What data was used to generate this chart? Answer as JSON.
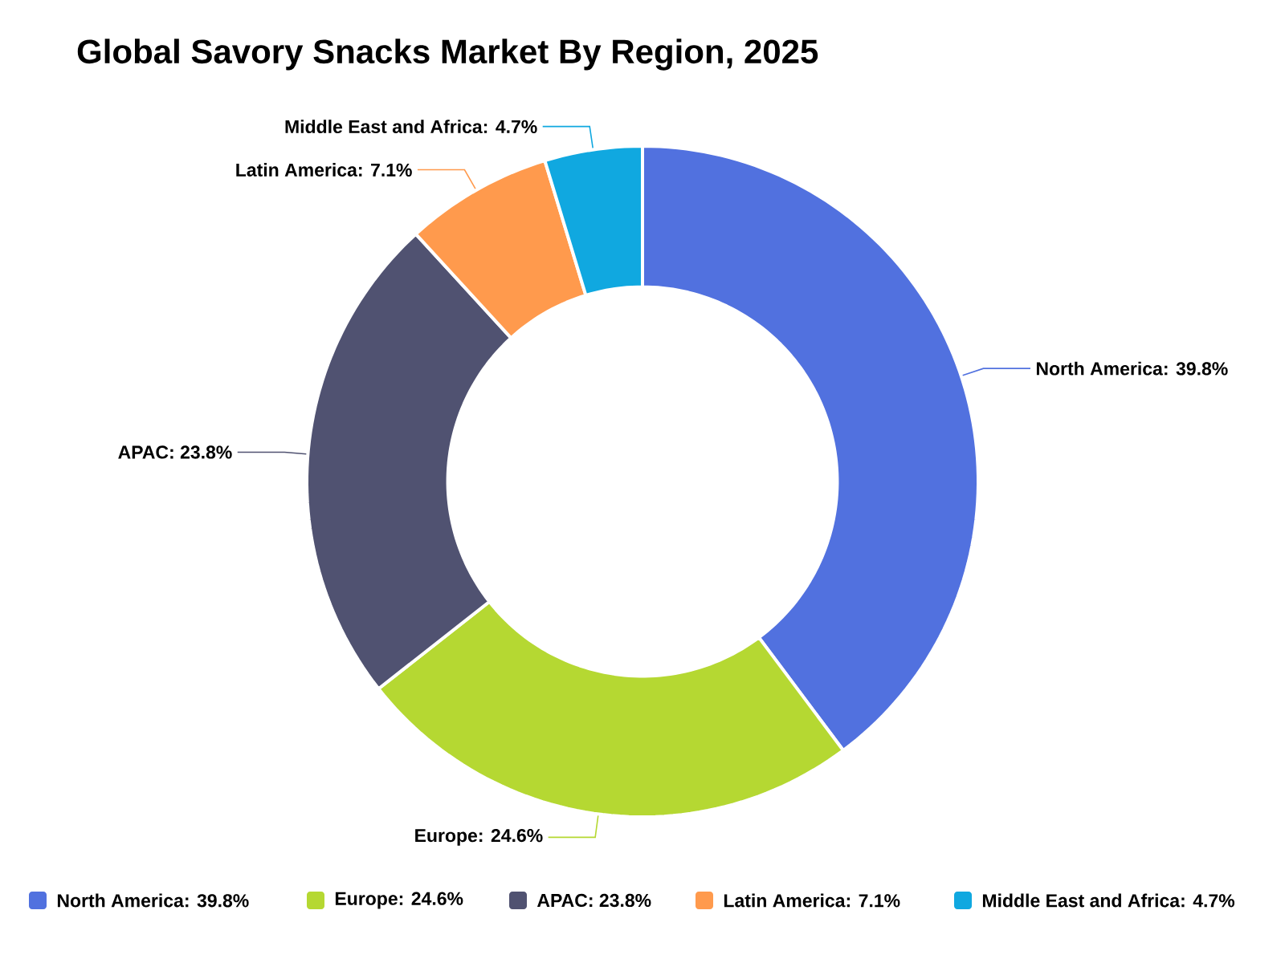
{
  "chart_data": {
    "type": "donut",
    "title": "Global Savory Snacks Market By Region, 2025",
    "categories": [
      "North America",
      "Europe",
      "APAC",
      "Latin America",
      "Middle East and Africa"
    ],
    "values": [
      39.8,
      24.6,
      23.8,
      7.1,
      4.7
    ],
    "colors": [
      "#5171df",
      "#b5d832",
      "#505271",
      "#ff9a4d",
      "#10a8e0"
    ],
    "value_labels": [
      ": 39.8%",
      ": 24.6%",
      ": 23.8%",
      ": 7.1%",
      ": 4.7%"
    ],
    "legend": "bottom"
  }
}
